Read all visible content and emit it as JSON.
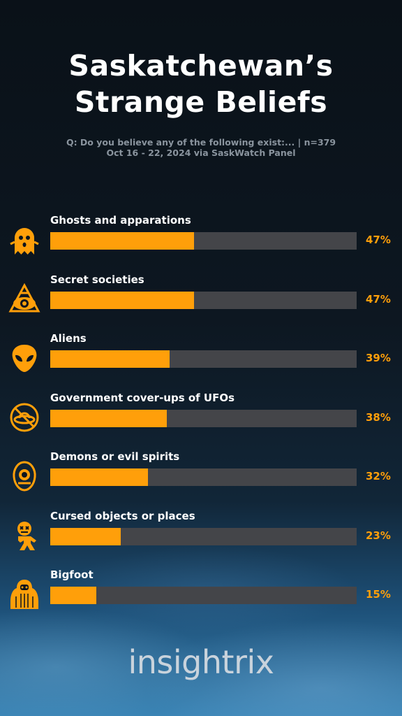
{
  "title_line1": "Saskatchewan’s",
  "title_line2": "Strange Beliefs",
  "subtitle_line1": "Q: Do you believe any of the following exist:... | n=379",
  "subtitle_line2": "Oct 16 - 22, 2024 via SaskWatch Panel",
  "brand": "insightrix",
  "colors": {
    "bar": "#ff9f0a",
    "track": "#444549",
    "text": "#ffffff"
  },
  "chart_data": {
    "type": "bar",
    "orientation": "horizontal",
    "title": "Saskatchewan’s Strange Beliefs",
    "categories": [
      "Ghosts and apparations",
      "Secret societies",
      "Aliens",
      "Government cover-ups of UFOs",
      "Demons or evil spirits",
      "Cursed objects or places",
      "Bigfoot"
    ],
    "values": [
      47,
      47,
      39,
      38,
      32,
      23,
      15
    ],
    "value_labels": [
      "47%",
      "47%",
      "39%",
      "38%",
      "32%",
      "23%",
      "15%"
    ],
    "icons": [
      "ghost-icon",
      "all-seeing-eye-icon",
      "alien-icon",
      "no-ufo-icon",
      "ouija-planchette-icon",
      "voodoo-doll-icon",
      "bigfoot-icon"
    ],
    "xlim": [
      0,
      100
    ],
    "unit": "%",
    "grid": false,
    "legend": "none"
  }
}
